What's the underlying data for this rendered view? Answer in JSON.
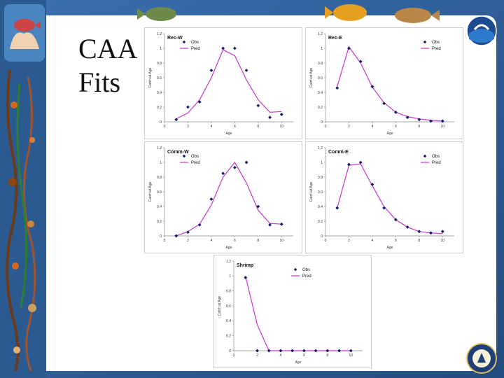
{
  "slide": {
    "title_line1": "CAA",
    "title_line2": "Fits"
  },
  "colors": {
    "background": "#2f5f9a",
    "pred_line": "#cc33cc",
    "obs_marker": "#0a1a66"
  },
  "legend": {
    "obs": "Obs",
    "pred": "Pred"
  },
  "chart_data": [
    {
      "type": "line",
      "title": "Rec-W",
      "xlabel": "Age",
      "ylabel": "Catch at Age",
      "ylim": [
        0,
        1.2
      ],
      "xlim": [
        0,
        11
      ],
      "yticks": [
        "0",
        "0.2",
        "0.4",
        "0.6",
        "0.8",
        "1",
        "1.2"
      ],
      "xticks": [
        0,
        2,
        4,
        6,
        8,
        10
      ],
      "legend_position": "top-left",
      "series": [
        {
          "name": "Obs",
          "x": [
            1,
            2,
            3,
            4,
            5,
            6,
            7,
            8,
            9,
            10
          ],
          "values": [
            0.03,
            0.2,
            0.27,
            0.7,
            1.0,
            1.0,
            0.7,
            0.22,
            0.06,
            0.1
          ]
        },
        {
          "name": "Pred",
          "x": [
            1,
            2,
            3,
            4,
            5,
            6,
            7,
            8,
            9,
            10
          ],
          "values": [
            0.04,
            0.12,
            0.3,
            0.6,
            0.98,
            0.9,
            0.57,
            0.3,
            0.13,
            0.14
          ]
        }
      ]
    },
    {
      "type": "line",
      "title": "Rec-E",
      "xlabel": "Age",
      "ylabel": "Catch at Age",
      "ylim": [
        0,
        1.2
      ],
      "xlim": [
        0,
        11
      ],
      "yticks": [
        "0",
        "0.2",
        "0.4",
        "0.6",
        "0.8",
        "1",
        "1.2"
      ],
      "xticks": [
        0,
        2,
        4,
        6,
        8,
        10
      ],
      "legend_position": "top-right",
      "series": [
        {
          "name": "Obs",
          "x": [
            1,
            2,
            3,
            4,
            5,
            6,
            7,
            8,
            9,
            10
          ],
          "values": [
            0.46,
            1.0,
            0.82,
            0.48,
            0.25,
            0.13,
            0.06,
            0.03,
            0.01,
            0.01
          ]
        },
        {
          "name": "Pred",
          "x": [
            1,
            2,
            3,
            4,
            5,
            6,
            7,
            8,
            9,
            10
          ],
          "values": [
            0.48,
            1.02,
            0.8,
            0.47,
            0.26,
            0.13,
            0.07,
            0.04,
            0.02,
            0.01
          ]
        }
      ]
    },
    {
      "type": "line",
      "title": "Comm-W",
      "xlabel": "Age",
      "ylabel": "Catch at Age",
      "ylim": [
        0,
        1.2
      ],
      "xlim": [
        0,
        11
      ],
      "yticks": [
        "0",
        "0.2",
        "0.4",
        "0.6",
        "0.8",
        "1",
        "1.2"
      ],
      "xticks": [
        0,
        2,
        4,
        6,
        8,
        10
      ],
      "legend_position": "top-left",
      "series": [
        {
          "name": "Obs",
          "x": [
            1,
            2,
            3,
            4,
            5,
            6,
            7,
            8,
            9,
            10
          ],
          "values": [
            0.0,
            0.05,
            0.15,
            0.5,
            0.85,
            0.93,
            1.0,
            0.4,
            0.15,
            0.16
          ]
        },
        {
          "name": "Pred",
          "x": [
            1,
            2,
            3,
            4,
            5,
            6,
            7,
            8,
            9,
            10
          ],
          "values": [
            0.0,
            0.06,
            0.16,
            0.42,
            0.8,
            1.0,
            0.72,
            0.35,
            0.17,
            0.16
          ]
        }
      ]
    },
    {
      "type": "line",
      "title": "Comm-E",
      "xlabel": "Age",
      "ylabel": "Catch at Age",
      "ylim": [
        0,
        1.2
      ],
      "xlim": [
        0,
        11
      ],
      "yticks": [
        "0",
        "0.2",
        "0.4",
        "0.6",
        "0.8",
        "1",
        "1.2"
      ],
      "xticks": [
        0,
        2,
        4,
        6,
        8,
        10
      ],
      "legend_position": "top-right",
      "series": [
        {
          "name": "Obs",
          "x": [
            1,
            2,
            3,
            4,
            5,
            6,
            7,
            8,
            9,
            10
          ],
          "values": [
            0.38,
            0.97,
            1.0,
            0.7,
            0.38,
            0.22,
            0.12,
            0.06,
            0.04,
            0.06
          ]
        },
        {
          "name": "Pred",
          "x": [
            1,
            2,
            3,
            4,
            5,
            6,
            7,
            8,
            9,
            10
          ],
          "values": [
            0.38,
            0.96,
            0.98,
            0.68,
            0.4,
            0.22,
            0.12,
            0.06,
            0.04,
            0.03
          ]
        }
      ]
    },
    {
      "type": "line",
      "title": "Shrimp",
      "xlabel": "Age",
      "ylabel": "Catch at Age",
      "ylim": [
        0,
        1.2
      ],
      "xlim": [
        0,
        11
      ],
      "yticks": [
        "0",
        "0.2",
        "0.4",
        "0.6",
        "0.8",
        "1",
        "1.2"
      ],
      "xticks": [
        0,
        2,
        4,
        6,
        8,
        10
      ],
      "legend_position": "top-center",
      "series": [
        {
          "name": "Obs",
          "x": [
            1,
            2,
            3,
            4,
            5,
            6,
            7,
            8,
            9,
            10
          ],
          "values": [
            0.98,
            0,
            0,
            0,
            0,
            0,
            0,
            0,
            0,
            0
          ]
        },
        {
          "name": "Pred",
          "x": [
            1,
            2,
            3,
            4,
            5,
            6,
            7,
            8,
            9,
            10
          ],
          "values": [
            1.0,
            0.35,
            0,
            0,
            0,
            0,
            0,
            0,
            0,
            0
          ]
        }
      ]
    }
  ]
}
